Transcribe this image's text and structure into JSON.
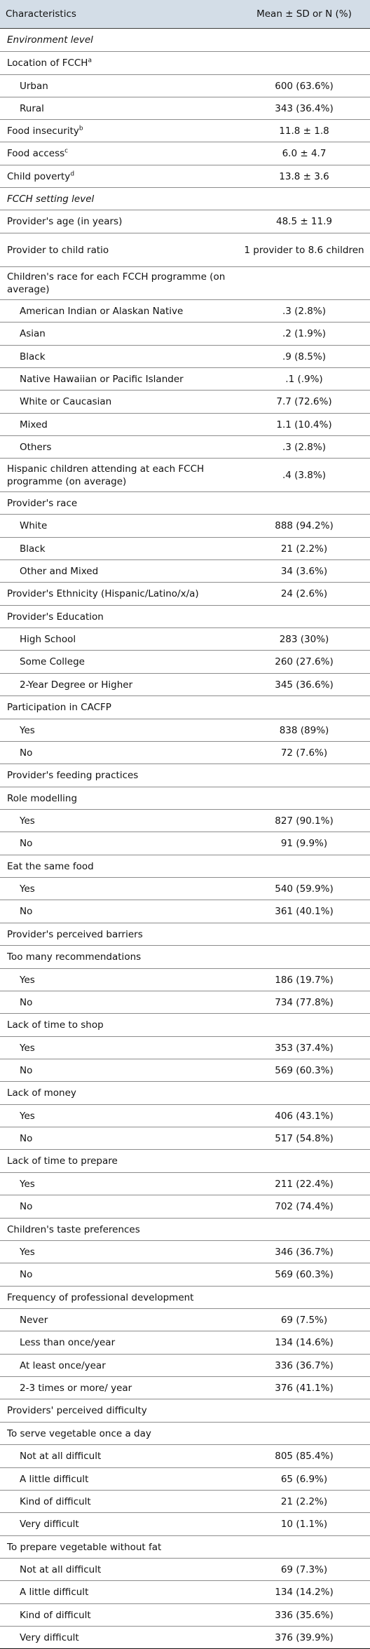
{
  "header": {
    "col1": "Characteristics",
    "col2": "Mean ± SD or N (%)"
  },
  "rows": [
    {
      "label": "Environment level",
      "value": "",
      "kind": "section",
      "h": 33
    },
    {
      "label": "Location of FCCH",
      "sup": "a",
      "value": "",
      "kind": "cat",
      "h": 33
    },
    {
      "label": "Urban",
      "value": "600 (63.6%)",
      "kind": "sub",
      "h": 32
    },
    {
      "label": "Rural",
      "value": "343 (36.4%)",
      "kind": "sub",
      "h": 32
    },
    {
      "label": "Food insecurity",
      "sup": "b",
      "value": "11.8 ± 1.8",
      "kind": "cat",
      "h": 32
    },
    {
      "label": "Food access",
      "sup": "c",
      "value": "6.0 ± 4.7",
      "kind": "cat",
      "h": 33
    },
    {
      "label": "Child poverty",
      "sup": "d",
      "value": "13.8 ± 3.6",
      "kind": "cat",
      "h": 32
    },
    {
      "label": "FCCH setting level",
      "value": "",
      "kind": "section",
      "h": 32
    },
    {
      "label": "Provider's age (in years)",
      "value": "48.5 ± 11.9",
      "kind": "cat",
      "h": 33
    },
    {
      "label": "Provider to child ratio",
      "value": "1 provider to 8.6 children",
      "kind": "cat",
      "h": 48
    },
    {
      "label": "Children's race for each FCCH programme (on average)",
      "value": "",
      "kind": "cat",
      "h": 47
    },
    {
      "label": "American Indian or Alaskan Native",
      "value": ".3 (2.8%)",
      "kind": "sub",
      "h": 32
    },
    {
      "label": "Asian",
      "value": ".2 (1.9%)",
      "kind": "sub",
      "h": 33
    },
    {
      "label": "Black",
      "value": ".9 (8.5%)",
      "kind": "sub",
      "h": 32
    },
    {
      "label": "Native Hawaiian or Pacific Islander",
      "value": ".1 (.9%)",
      "kind": "sub",
      "h": 32
    },
    {
      "label": "White or Caucasian",
      "value": "7.7 (72.6%)",
      "kind": "sub",
      "h": 33
    },
    {
      "label": "Mixed",
      "value": "1.1 (10.4%)",
      "kind": "sub",
      "h": 32
    },
    {
      "label": "Others",
      "value": ".3 (2.8%)",
      "kind": "sub",
      "h": 32
    },
    {
      "label": "Hispanic children attending at each FCCH programme (on average)",
      "value": ".4 (3.8%)",
      "kind": "cat",
      "h": 48
    },
    {
      "label": "Provider's race",
      "value": "",
      "kind": "cat",
      "h": 32
    },
    {
      "label": "White",
      "value": "888 (94.2%)",
      "kind": "sub",
      "h": 33
    },
    {
      "label": "Black",
      "value": "21 (2.2%)",
      "kind": "sub",
      "h": 32
    },
    {
      "label": "Other and Mixed",
      "value": "34 (3.6%)",
      "kind": "sub",
      "h": 32
    },
    {
      "label": "Provider's Ethnicity (Hispanic/Latino/x/a)",
      "value": "24 (2.6%)",
      "kind": "cat",
      "h": 33
    },
    {
      "label": "Provider's Education",
      "value": "",
      "kind": "cat",
      "h": 32
    },
    {
      "label": "High School",
      "value": "283 (30%)",
      "kind": "sub",
      "h": 32
    },
    {
      "label": "Some College",
      "value": "260 (27.6%)",
      "kind": "sub",
      "h": 33
    },
    {
      "label": "2-Year Degree or Higher",
      "value": "345 (36.6%)",
      "kind": "sub",
      "h": 32
    },
    {
      "label": "Participation in CACFP",
      "value": "",
      "kind": "cat",
      "h": 33
    },
    {
      "label": "Yes",
      "value": "838 (89%)",
      "kind": "sub",
      "h": 32
    },
    {
      "label": "No",
      "value": "72 (7.6%)",
      "kind": "sub",
      "h": 32
    },
    {
      "label": "Provider's feeding practices",
      "value": "",
      "kind": "cat",
      "h": 33
    },
    {
      "label": "Role modelling",
      "value": "",
      "kind": "cat",
      "h": 32
    },
    {
      "label": "Yes",
      "value": "827 (90.1%)",
      "kind": "sub",
      "h": 32
    },
    {
      "label": "No",
      "value": "91 (9.9%)",
      "kind": "sub",
      "h": 33
    },
    {
      "label": "Eat the same food",
      "value": "",
      "kind": "cat",
      "h": 32
    },
    {
      "label": "Yes",
      "value": "540 (59.9%)",
      "kind": "sub",
      "h": 32
    },
    {
      "label": "No",
      "value": "361 (40.1%)",
      "kind": "sub",
      "h": 33
    },
    {
      "label": "Provider's perceived barriers",
      "value": "",
      "kind": "cat",
      "h": 32
    },
    {
      "label": "Too many recommendations",
      "value": "",
      "kind": "cat",
      "h": 33
    },
    {
      "label": "Yes",
      "value": "186 (19.7%)",
      "kind": "sub",
      "h": 32
    },
    {
      "label": "No",
      "value": "734 (77.8%)",
      "kind": "sub",
      "h": 32
    },
    {
      "label": "Lack of time to shop",
      "value": "",
      "kind": "cat",
      "h": 33
    },
    {
      "label": "Yes",
      "value": "353 (37.4%)",
      "kind": "sub",
      "h": 32
    },
    {
      "label": "No",
      "value": "569 (60.3%)",
      "kind": "sub",
      "h": 32
    },
    {
      "label": "Lack of money",
      "value": "",
      "kind": "cat",
      "h": 33
    },
    {
      "label": "Yes",
      "value": "406 (43.1%)",
      "kind": "sub",
      "h": 32
    },
    {
      "label": "No",
      "value": "517 (54.8%)",
      "kind": "sub",
      "h": 32
    },
    {
      "label": "Lack of time to prepare",
      "value": "",
      "kind": "cat",
      "h": 33
    },
    {
      "label": "Yes",
      "value": "211 (22.4%)",
      "kind": "sub",
      "h": 32
    },
    {
      "label": "No",
      "value": "702 (74.4%)",
      "kind": "sub",
      "h": 33
    },
    {
      "label": "Children's taste preferences",
      "value": "",
      "kind": "cat",
      "h": 32
    },
    {
      "label": "Yes",
      "value": "346 (36.7%)",
      "kind": "sub",
      "h": 32
    },
    {
      "label": "No",
      "value": "569 (60.3%)",
      "kind": "sub",
      "h": 33
    },
    {
      "label": "Frequency of professional development",
      "value": "",
      "kind": "cat",
      "h": 32
    },
    {
      "label": "Never",
      "value": "69 (7.5%)",
      "kind": "sub",
      "h": 32
    },
    {
      "label": "Less than once/year",
      "value": "134 (14.6%)",
      "kind": "sub",
      "h": 33
    },
    {
      "label": "At least once/year",
      "value": "336 (36.7%)",
      "kind": "sub",
      "h": 32
    },
    {
      "label": "2-3 times or more/ year",
      "value": "376 (41.1%)",
      "kind": "sub",
      "h": 32
    },
    {
      "label": "Providers' perceived difficulty",
      "value": "",
      "kind": "cat",
      "h": 33
    },
    {
      "label": "To serve vegetable once a day",
      "value": "",
      "kind": "cat",
      "h": 32
    },
    {
      "label": "Not at all difficult",
      "value": "805 (85.4%)",
      "kind": "sub",
      "h": 33
    },
    {
      "label": "A little difficult",
      "value": "65 (6.9%)",
      "kind": "sub",
      "h": 32
    },
    {
      "label": "Kind of difficult",
      "value": "21 (2.2%)",
      "kind": "sub",
      "h": 32
    },
    {
      "label": "Very difficult",
      "value": "10 (1.1%)",
      "kind": "sub",
      "h": 33
    },
    {
      "label": "To prepare vegetable without fat",
      "value": "",
      "kind": "cat",
      "h": 32
    },
    {
      "label": "Not at all difficult",
      "value": "69 (7.3%)",
      "kind": "sub",
      "h": 32
    },
    {
      "label": "A little difficult",
      "value": "134 (14.2%)",
      "kind": "sub",
      "h": 33
    },
    {
      "label": "Kind of difficult",
      "value": "336 (35.6%)",
      "kind": "sub",
      "h": 32
    },
    {
      "label": "Very difficult",
      "value": "376 (39.9%)",
      "kind": "sub",
      "h": 32
    }
  ]
}
